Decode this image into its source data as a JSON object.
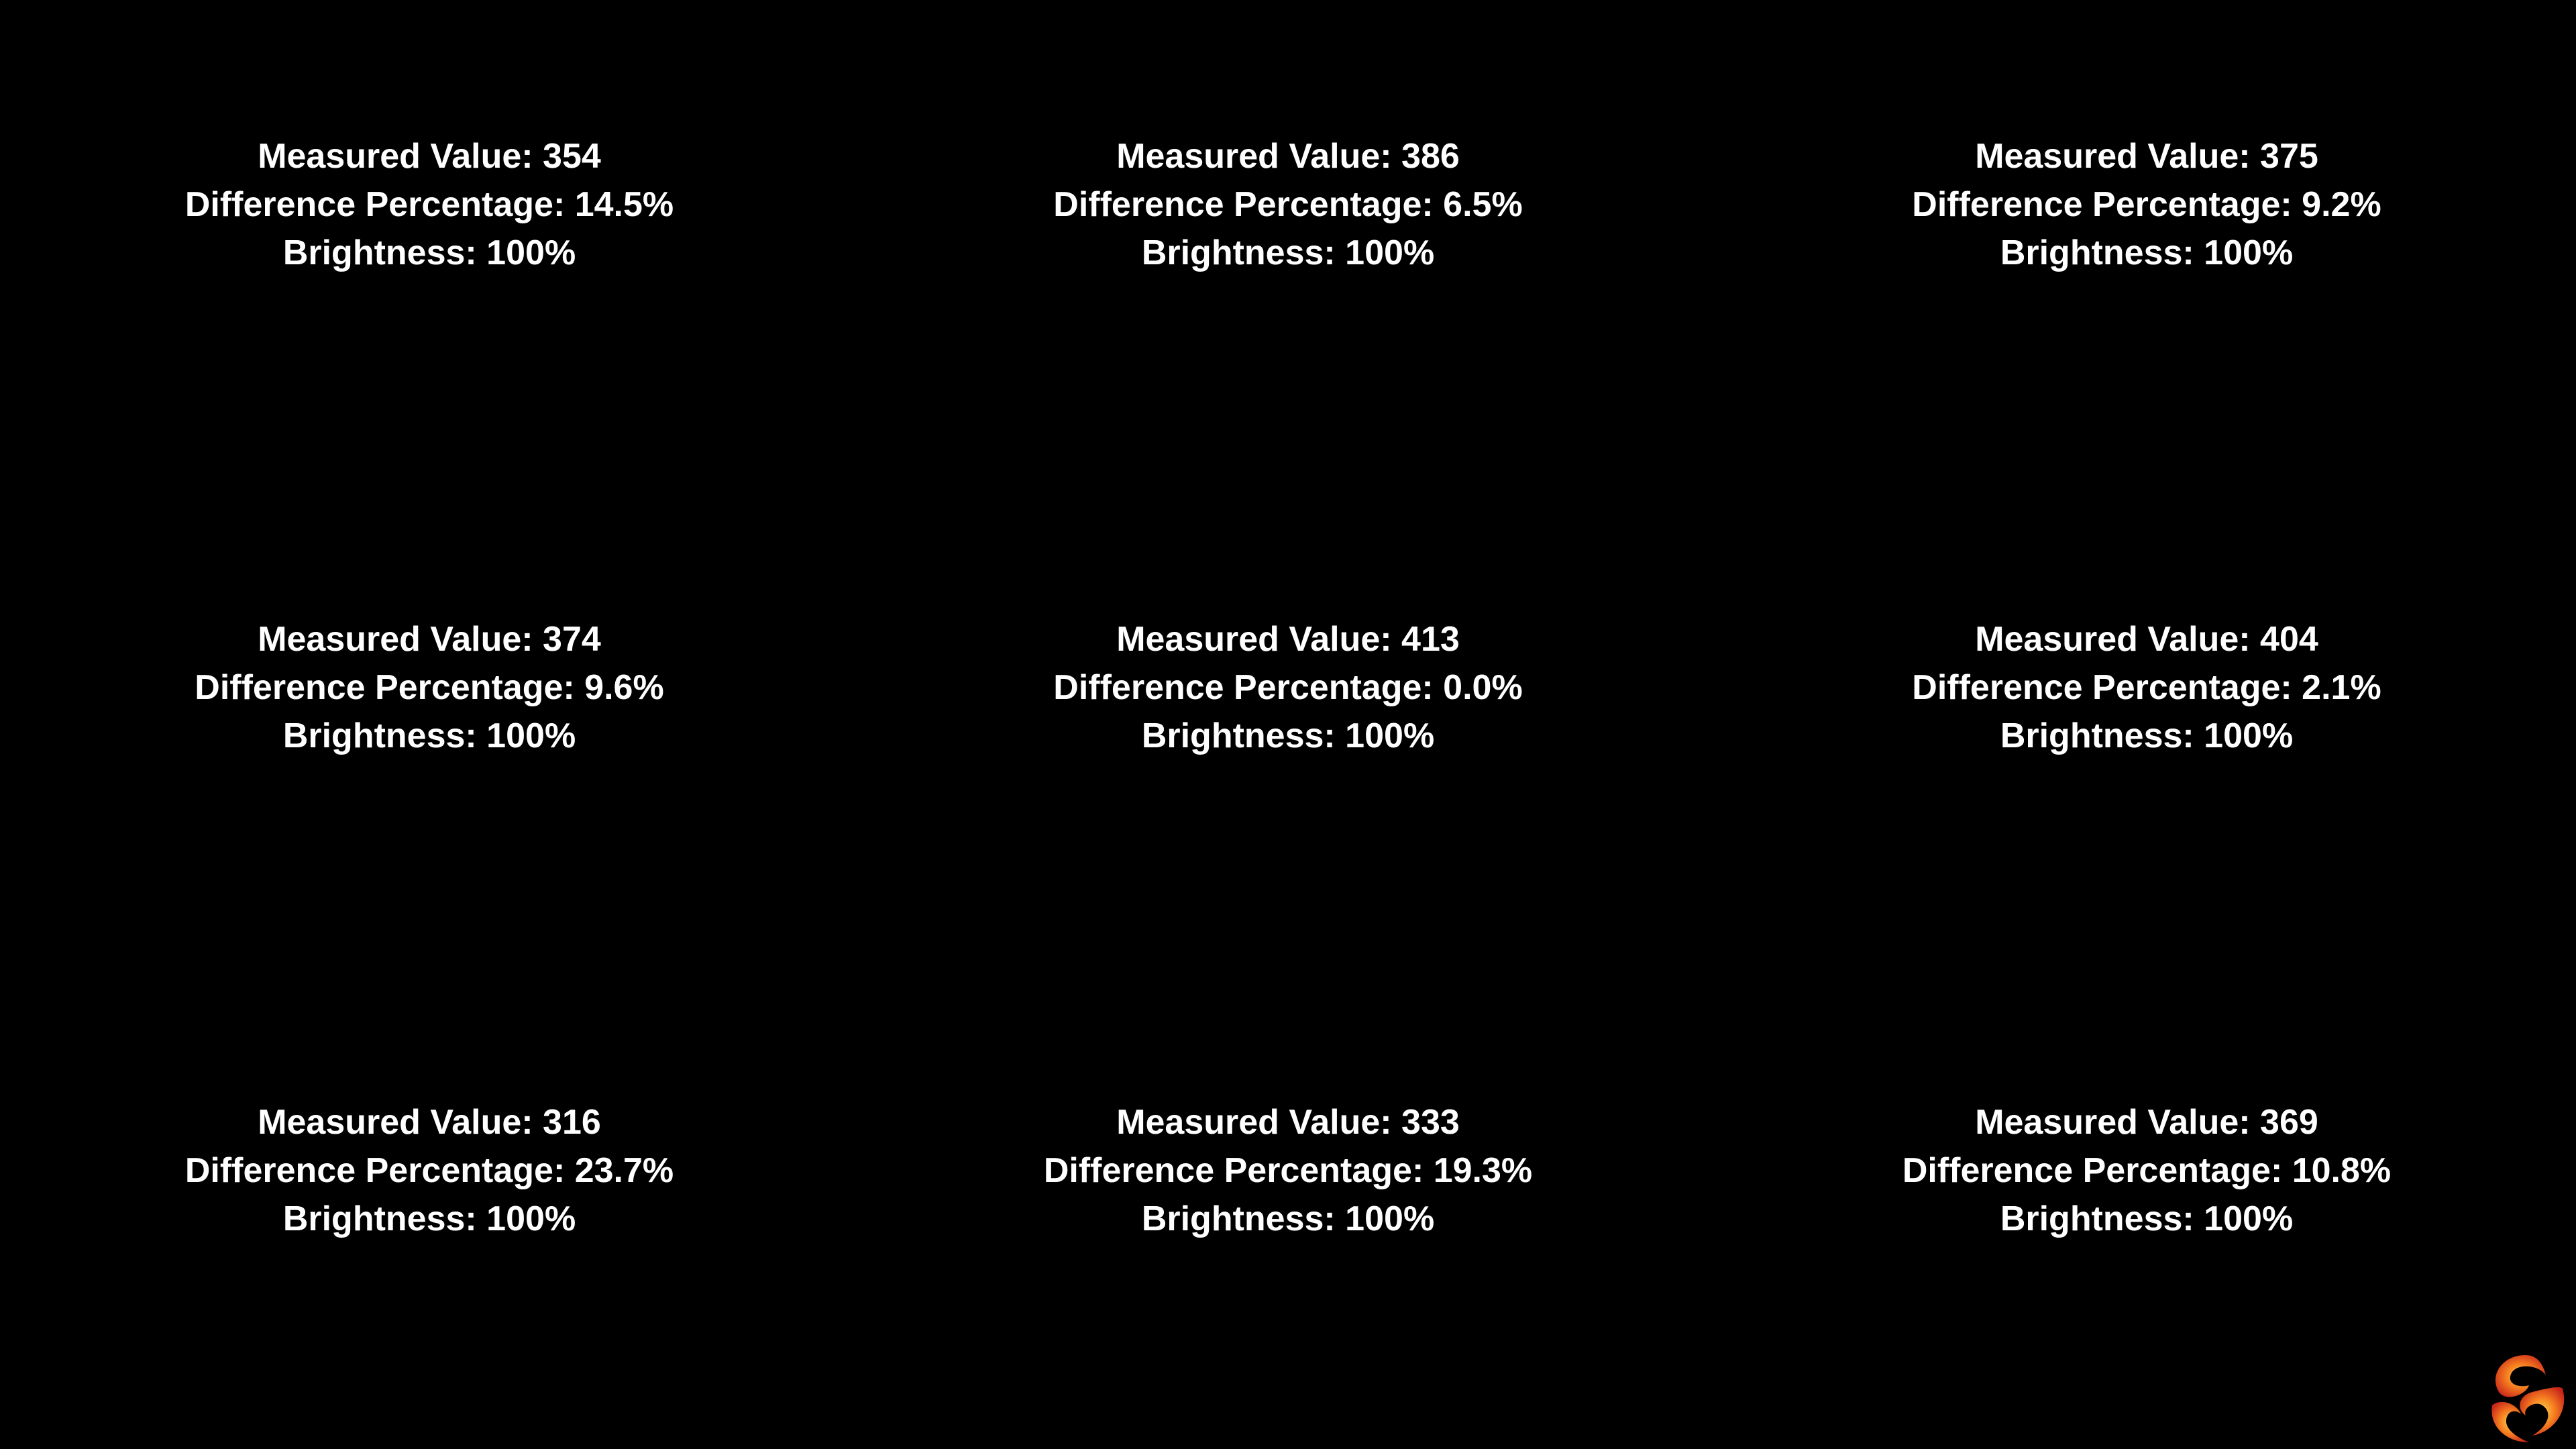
{
  "cells": [
    {
      "lines": [
        "Measured Value: 354",
        "Difference Percentage: 14.5%",
        "Brightness: 100%"
      ]
    },
    {
      "lines": [
        "Measured Value: 386",
        "Difference Percentage: 6.5%",
        "Brightness: 100%"
      ]
    },
    {
      "lines": [
        "Measured Value: 375",
        "Difference Percentage: 9.2%",
        "Brightness: 100%"
      ]
    },
    {
      "lines": [
        "Measured Value: 374",
        "Difference Percentage: 9.6%",
        "Brightness: 100%"
      ]
    },
    {
      "lines": [
        "Measured Value: 413",
        "Difference Percentage: 0.0%",
        "Brightness: 100%"
      ]
    },
    {
      "lines": [
        "Measured Value: 404",
        "Difference Percentage: 2.1%",
        "Brightness: 100%"
      ]
    },
    {
      "lines": [
        "Measured Value: 316",
        "Difference Percentage: 23.7%",
        "Brightness: 100%"
      ]
    },
    {
      "lines": [
        "Measured Value: 333",
        "Difference Percentage: 19.3%",
        "Brightness: 100%"
      ]
    },
    {
      "lines": [
        "Measured Value: 369",
        "Difference Percentage: 10.8%",
        "Brightness: 100%"
      ]
    }
  ]
}
